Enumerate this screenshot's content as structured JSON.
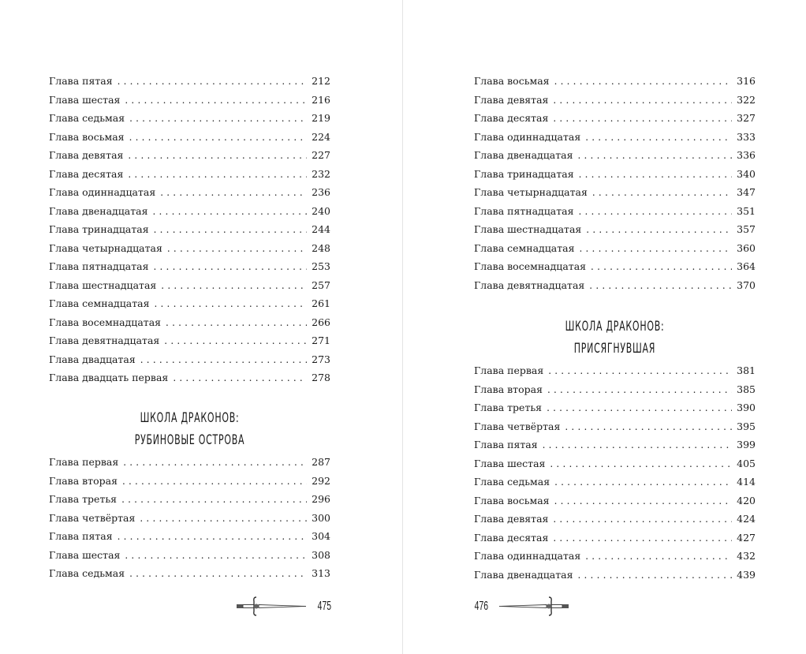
{
  "left_page": {
    "entries_top": [
      {
        "title": "Глава пятая",
        "page": "212"
      },
      {
        "title": "Глава шестая",
        "page": "216"
      },
      {
        "title": "Глава седьмая",
        "page": "219"
      },
      {
        "title": "Глава восьмая",
        "page": "224"
      },
      {
        "title": "Глава девятая",
        "page": "227"
      },
      {
        "title": "Глава десятая",
        "page": "232"
      },
      {
        "title": "Глава одиннадцатая",
        "page": "236"
      },
      {
        "title": "Глава двенадцатая",
        "page": "240"
      },
      {
        "title": "Глава тринадцатая",
        "page": "244"
      },
      {
        "title": "Глава четырнадцатая",
        "page": "248"
      },
      {
        "title": "Глава пятнадцатая",
        "page": "253"
      },
      {
        "title": "Глава шестнадцатая",
        "page": "257"
      },
      {
        "title": "Глава семнадцатая",
        "page": "261"
      },
      {
        "title": "Глава восемнадцатая",
        "page": "266"
      },
      {
        "title": "Глава девятнадцатая",
        "page": "271"
      },
      {
        "title": "Глава двадцатая",
        "page": "273"
      },
      {
        "title": "Глава двадцать первая",
        "page": "278"
      }
    ],
    "section_heading": [
      "ШКОЛА ДРАКОНОВ:",
      "РУБИНОВЫЕ ОСТРОВА"
    ],
    "entries_bottom": [
      {
        "title": "Глава первая",
        "page": "287"
      },
      {
        "title": "Глава вторая",
        "page": "292"
      },
      {
        "title": "Глава третья",
        "page": "296"
      },
      {
        "title": "Глава четвёртая",
        "page": "300"
      },
      {
        "title": "Глава пятая",
        "page": "304"
      },
      {
        "title": "Глава шестая",
        "page": "308"
      },
      {
        "title": "Глава седьмая",
        "page": "313"
      }
    ],
    "folio": "475",
    "ornament": "dagger-icon"
  },
  "right_page": {
    "entries_top": [
      {
        "title": "Глава восьмая",
        "page": "316"
      },
      {
        "title": "Глава девятая",
        "page": "322"
      },
      {
        "title": "Глава десятая",
        "page": "327"
      },
      {
        "title": "Глава одиннадцатая",
        "page": "333"
      },
      {
        "title": "Глава двенадцатая",
        "page": "336"
      },
      {
        "title": "Глава тринадцатая",
        "page": "340"
      },
      {
        "title": "Глава четырнадцатая",
        "page": "347"
      },
      {
        "title": "Глава пятнадцатая",
        "page": "351"
      },
      {
        "title": "Глава шестнадцатая",
        "page": "357"
      },
      {
        "title": "Глава семнадцатая",
        "page": "360"
      },
      {
        "title": "Глава восемнадцатая",
        "page": "364"
      },
      {
        "title": "Глава девятнадцатая",
        "page": "370"
      }
    ],
    "section_heading": [
      "ШКОЛА ДРАКОНОВ:",
      "ПРИСЯГНУВШАЯ"
    ],
    "entries_bottom": [
      {
        "title": "Глава первая",
        "page": "381"
      },
      {
        "title": "Глава вторая",
        "page": "385"
      },
      {
        "title": "Глава третья",
        "page": "390"
      },
      {
        "title": "Глава четвёртая",
        "page": "395"
      },
      {
        "title": "Глава пятая",
        "page": "399"
      },
      {
        "title": "Глава шестая",
        "page": "405"
      },
      {
        "title": "Глава седьмая",
        "page": "414"
      },
      {
        "title": "Глава восьмая",
        "page": "420"
      },
      {
        "title": "Глава девятая",
        "page": "424"
      },
      {
        "title": "Глава десятая",
        "page": "427"
      },
      {
        "title": "Глава одиннадцатая",
        "page": "432"
      },
      {
        "title": "Глава двенадцатая",
        "page": "439"
      }
    ],
    "folio": "476",
    "ornament": "dagger-icon"
  }
}
